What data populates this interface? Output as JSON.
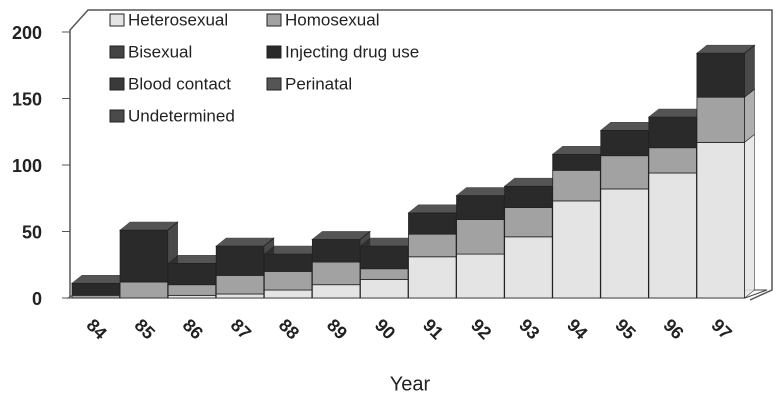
{
  "chart_data": {
    "type": "bar",
    "stacked": true,
    "x_label": "Year",
    "categories": [
      "84",
      "85",
      "86",
      "87",
      "88",
      "89",
      "90",
      "91",
      "92",
      "93",
      "94",
      "95",
      "96",
      "97"
    ],
    "series": [
      {
        "name": "Heterosexual",
        "color": "#e4e4e4",
        "values": [
          0,
          0,
          2,
          3,
          6,
          10,
          14,
          31,
          33,
          46,
          73,
          82,
          94,
          117
        ]
      },
      {
        "name": "Homosexual",
        "color": "#a2a2a2",
        "values": [
          2,
          12,
          8,
          14,
          14,
          17,
          8,
          17,
          26,
          22,
          23,
          25,
          19,
          34
        ]
      },
      {
        "name": "Bisexual",
        "color": "#444444",
        "values": [
          0,
          0,
          0,
          0,
          0,
          0,
          0,
          0,
          0,
          0,
          0,
          0,
          0,
          0
        ]
      },
      {
        "name": "Injecting drug use",
        "color": "#2a2a2a",
        "values": [
          9,
          39,
          16,
          22,
          13,
          17,
          17,
          16,
          18,
          16,
          12,
          19,
          23,
          33
        ]
      },
      {
        "name": "Blood contact",
        "color": "#3a3a3a",
        "values": [
          0,
          0,
          0,
          0,
          0,
          0,
          0,
          0,
          0,
          0,
          0,
          0,
          0,
          0
        ]
      },
      {
        "name": "Perinatal",
        "color": "#555555",
        "values": [
          0,
          0,
          0,
          0,
          0,
          0,
          0,
          0,
          0,
          0,
          0,
          0,
          0,
          0
        ]
      },
      {
        "name": "Undetermined",
        "color": "#4a4a4a",
        "values": [
          0,
          0,
          0,
          0,
          0,
          0,
          0,
          0,
          0,
          0,
          0,
          0,
          0,
          0
        ]
      }
    ],
    "ylim": [
      0,
      200
    ],
    "yticks": [
      0,
      50,
      100,
      150,
      200
    ]
  }
}
